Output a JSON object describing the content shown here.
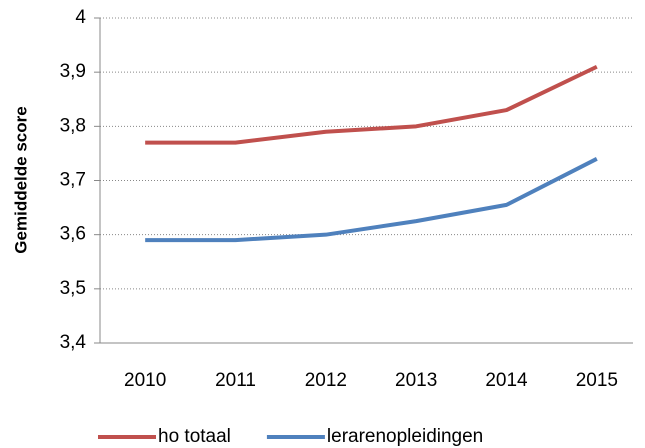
{
  "chart_data": {
    "type": "line",
    "ylabel": "Gemiddelde score",
    "categories": [
      "2010",
      "2011",
      "2012",
      "2013",
      "2014",
      "2015"
    ],
    "series": [
      {
        "name": "ho totaal",
        "color": "#c0504d",
        "values": [
          3.77,
          3.77,
          3.79,
          3.8,
          3.83,
          3.91
        ]
      },
      {
        "name": "lerarenopleidingen",
        "color": "#4f81bd",
        "values": [
          3.59,
          3.59,
          3.6,
          3.625,
          3.655,
          3.74
        ]
      }
    ],
    "ylim": [
      3.4,
      4
    ],
    "yticks": [
      {
        "value": 3.4,
        "label": "3,4"
      },
      {
        "value": 3.5,
        "label": "3,5"
      },
      {
        "value": 3.6,
        "label": "3,6"
      },
      {
        "value": 3.7,
        "label": "3,7"
      },
      {
        "value": 3.8,
        "label": "3,8"
      },
      {
        "value": 3.9,
        "label": "3,9"
      },
      4
    ],
    "grid": true,
    "legend": "bottom"
  }
}
